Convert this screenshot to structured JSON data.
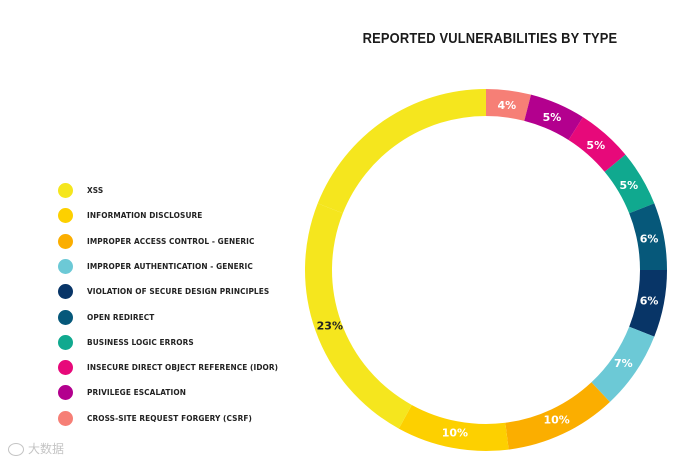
{
  "chart_data": {
    "type": "pie",
    "donut": true,
    "title": "REPORTED VULNERABILITIES BY TYPE",
    "legend_position": "left",
    "legend": [
      {
        "label": "XSS",
        "color": "#f5e61e"
      },
      {
        "label": "INFORMATION DISCLOSURE",
        "color": "#fdd000"
      },
      {
        "label": "IMPROPER ACCESS CONTROL - GENERIC",
        "color": "#fbae00"
      },
      {
        "label": "IMPROPER AUTHENTICATION - GENERIC",
        "color": "#6cc9d6"
      },
      {
        "label": "VIOLATION OF SECURE DESIGN PRINCIPLES",
        "color": "#083567"
      },
      {
        "label": "OPEN REDIRECT",
        "color": "#06587a"
      },
      {
        "label": "BUSINESS LOGIC ERRORS",
        "color": "#10a98f"
      },
      {
        "label": "INSECURE DIRECT OBJECT REFERENCE (IDOR)",
        "color": "#e7097a"
      },
      {
        "label": "PRIVILEGE ESCALATION",
        "color": "#b3008e"
      },
      {
        "label": "CROSS-SITE REQUEST FORGERY (CSRF)",
        "color": "#f67f76"
      }
    ],
    "slices": [
      {
        "value": 4,
        "label": "4%",
        "color": "#f67f76",
        "label_color": "#ffffff"
      },
      {
        "value": 5,
        "label": "5%",
        "color": "#b3008e",
        "label_color": "#ffffff"
      },
      {
        "value": 5,
        "label": "5%",
        "color": "#e7097a",
        "label_color": "#ffffff"
      },
      {
        "value": 5,
        "label": "5%",
        "color": "#10a98f",
        "label_color": "#ffffff"
      },
      {
        "value": 6,
        "label": "6%",
        "color": "#06587a",
        "label_color": "#ffffff"
      },
      {
        "value": 6,
        "label": "6%",
        "color": "#083567",
        "label_color": "#ffffff"
      },
      {
        "value": 7,
        "label": "7%",
        "color": "#6cc9d6",
        "label_color": "#ffffff"
      },
      {
        "value": 10,
        "label": "10%",
        "color": "#fbae00",
        "label_color": "#ffffff"
      },
      {
        "value": 10,
        "label": "10%",
        "color": "#fdd000",
        "label_color": "#ffffff"
      },
      {
        "value": 23,
        "label": "23%",
        "color": "#f5e61e",
        "label_color": "#222222"
      }
    ],
    "unlabeled_remainder_color": "#f5e61e"
  },
  "watermark": {
    "text": "大数据"
  }
}
